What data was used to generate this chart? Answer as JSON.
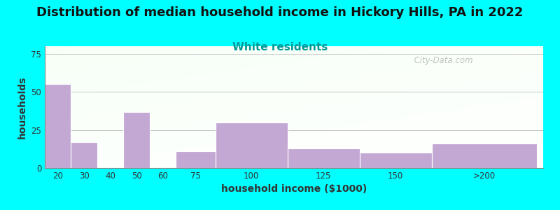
{
  "title": "Distribution of median household income in Hickory Hills, PA in 2022",
  "subtitle": "White residents",
  "xlabel": "household income ($1000)",
  "ylabel": "households",
  "bar_labels": [
    "20",
    "30",
    "40",
    "50",
    "60",
    "75",
    "100",
    "125",
    "150",
    ">200"
  ],
  "bar_values": [
    55,
    17,
    0,
    37,
    0,
    11,
    30,
    13,
    10,
    16
  ],
  "bar_lefts": [
    15,
    25,
    35,
    45,
    55,
    65,
    80,
    107.5,
    135,
    162.5
  ],
  "bar_widths": [
    10,
    10,
    10,
    10,
    10,
    15,
    27.5,
    27.5,
    27.5,
    40
  ],
  "bar_color": "#C4A8D4",
  "ylim": [
    0,
    80
  ],
  "yticks": [
    0,
    25,
    50,
    75
  ],
  "xlim": [
    15,
    205
  ],
  "background_color": "#00FFFF",
  "title_fontsize": 13,
  "subtitle_fontsize": 11,
  "subtitle_color": "#009999",
  "axis_label_fontsize": 10,
  "watermark": "  City-Data.com"
}
